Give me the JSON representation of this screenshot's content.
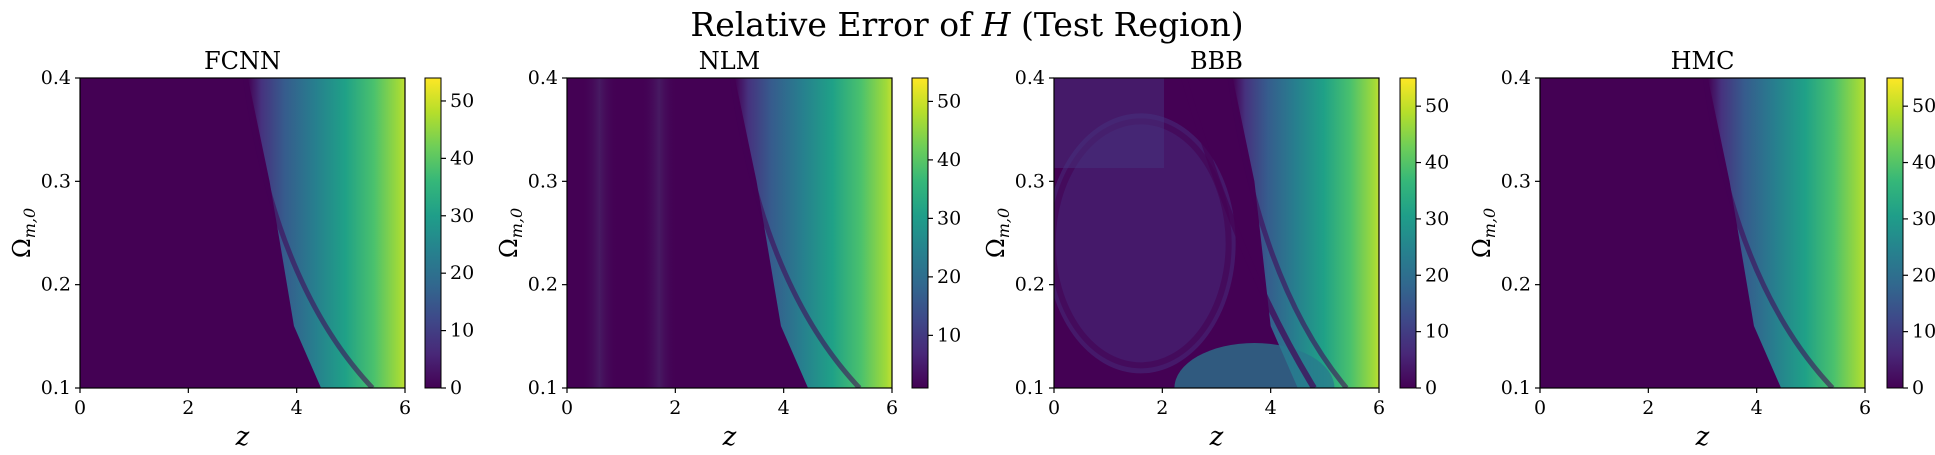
{
  "figure": {
    "suptitle_text": "Relative Error of ",
    "suptitle_var": "H",
    "suptitle_suffix": " (Test Region)"
  },
  "chart_data": [
    {
      "type": "heatmap",
      "title": "FCNN",
      "xlabel": "z",
      "ylabel_main": "Ω",
      "ylabel_sub": "m,0",
      "xlim": [
        0,
        6
      ],
      "ylim": [
        0.1,
        0.4
      ],
      "xticks": [
        0,
        2,
        4,
        6
      ],
      "yticks": [
        0.1,
        0.2,
        0.3,
        0.4
      ],
      "colorbar": {
        "vmin": 0,
        "vmax": 54,
        "ticks": [
          0,
          10,
          20,
          30,
          40,
          50
        ],
        "colormap": "viridis"
      },
      "samples": [
        {
          "z": 0,
          "omega_m0": 0.4,
          "error": 0
        },
        {
          "z": 3.2,
          "omega_m0": 0.4,
          "error": 0
        },
        {
          "z": 6,
          "omega_m0": 0.4,
          "error": 54
        },
        {
          "z": 3.9,
          "omega_m0": 0.1,
          "error": 2
        },
        {
          "z": 6,
          "omega_m0": 0.1,
          "error": 40
        }
      ]
    },
    {
      "type": "heatmap",
      "title": "NLM",
      "xlabel": "z",
      "ylabel_main": "Ω",
      "ylabel_sub": "m,0",
      "xlim": [
        0,
        6
      ],
      "ylim": [
        0.1,
        0.4
      ],
      "xticks": [
        0,
        2,
        4,
        6
      ],
      "yticks": [
        0.1,
        0.2,
        0.3,
        0.4
      ],
      "colorbar": {
        "vmin": 1,
        "vmax": 54,
        "ticks": [
          10,
          20,
          30,
          40,
          50
        ],
        "colormap": "viridis"
      },
      "samples": [
        {
          "z": 0,
          "omega_m0": 0.4,
          "error": 1
        },
        {
          "z": 3.3,
          "omega_m0": 0.4,
          "error": 1
        },
        {
          "z": 6,
          "omega_m0": 0.4,
          "error": 54
        },
        {
          "z": 6,
          "omega_m0": 0.1,
          "error": 40
        }
      ]
    },
    {
      "type": "heatmap",
      "title": "BBB",
      "xlabel": "z",
      "ylabel_main": "Ω",
      "ylabel_sub": "m,0",
      "xlim": [
        0,
        6
      ],
      "ylim": [
        0.1,
        0.4
      ],
      "xticks": [
        0,
        2,
        4,
        6
      ],
      "yticks": [
        0.1,
        0.2,
        0.3,
        0.4
      ],
      "colorbar": {
        "vmin": 0,
        "vmax": 55,
        "ticks": [
          0,
          10,
          20,
          30,
          40,
          50
        ],
        "colormap": "viridis"
      },
      "samples": [
        {
          "z": 0,
          "omega_m0": 0.4,
          "error": 6
        },
        {
          "z": 1.5,
          "omega_m0": 0.25,
          "error": 4
        },
        {
          "z": 3.7,
          "omega_m0": 0.1,
          "error": 22
        },
        {
          "z": 6,
          "omega_m0": 0.4,
          "error": 55
        },
        {
          "z": 6,
          "omega_m0": 0.1,
          "error": 38
        }
      ]
    },
    {
      "type": "heatmap",
      "title": "HMC",
      "xlabel": "z",
      "ylabel_main": "Ω",
      "ylabel_sub": "m,0",
      "xlim": [
        0,
        6
      ],
      "ylim": [
        0.1,
        0.4
      ],
      "xticks": [
        0,
        2,
        4,
        6
      ],
      "yticks": [
        0.1,
        0.2,
        0.3,
        0.4
      ],
      "colorbar": {
        "vmin": 0,
        "vmax": 55,
        "ticks": [
          0,
          10,
          20,
          30,
          40,
          50
        ],
        "colormap": "viridis"
      },
      "samples": [
        {
          "z": 0,
          "omega_m0": 0.4,
          "error": 0
        },
        {
          "z": 3.2,
          "omega_m0": 0.4,
          "error": 0
        },
        {
          "z": 6,
          "omega_m0": 0.4,
          "error": 55
        },
        {
          "z": 6,
          "omega_m0": 0.1,
          "error": 40
        }
      ]
    }
  ]
}
